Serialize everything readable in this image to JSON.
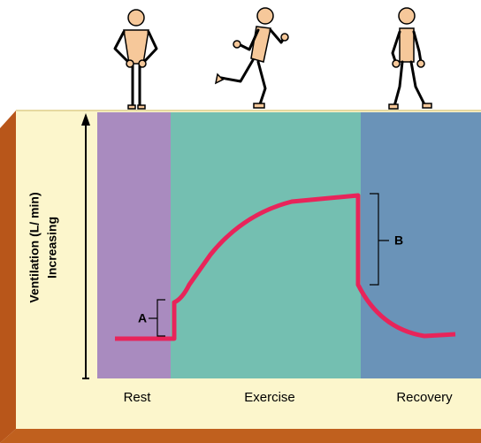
{
  "y_axis": {
    "label": "Ventilation (L/ min)",
    "direction": "Increasing"
  },
  "phases": [
    "Rest",
    "Exercise",
    "Recovery"
  ],
  "annotations": {
    "a": "A",
    "b": "B"
  }
}
